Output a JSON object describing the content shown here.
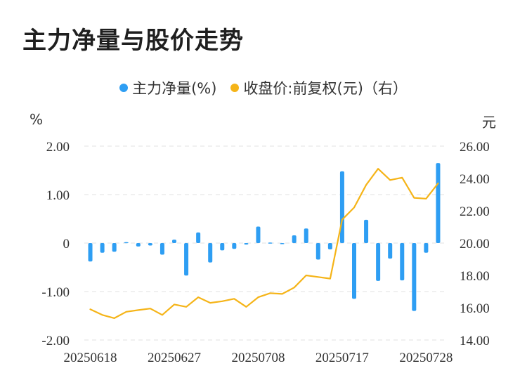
{
  "title": "主力净量与股价走势",
  "legend": {
    "net": "主力净量(%)",
    "price": "收盘价:前复权(元)（右）"
  },
  "units": {
    "left": "%",
    "right": "元"
  },
  "colors": {
    "bar": "#2e9ef3",
    "line": "#f5b418",
    "grid": "#e0e0e0"
  },
  "chart_data": {
    "type": "bar+line",
    "title": "主力净量与股价走势",
    "x_ticks": [
      "20250618",
      "20250627",
      "20250708",
      "20250717",
      "20250728"
    ],
    "x_tick_indices": [
      0,
      7,
      14,
      21,
      28
    ],
    "left_axis": {
      "unit": "%",
      "ylim": [
        -2,
        2
      ],
      "ticks": [
        "2.00",
        "1.00",
        "0",
        "-1.00",
        "-2.00"
      ],
      "tick_values": [
        2,
        1,
        0,
        -1,
        -2
      ]
    },
    "right_axis": {
      "unit": "元",
      "ylim": [
        14,
        26
      ],
      "ticks": [
        "26.00",
        "24.00",
        "22.00",
        "20.00",
        "18.00",
        "16.00",
        "14.00"
      ],
      "tick_values": [
        26,
        24,
        22,
        20,
        18,
        16,
        14
      ]
    },
    "grid": true,
    "legend_position": "top-center",
    "series": [
      {
        "name": "主力净量(%)",
        "type": "bar",
        "axis": "left",
        "values": [
          -0.38,
          -0.2,
          -0.18,
          0.02,
          -0.07,
          -0.05,
          -0.24,
          0.07,
          -0.67,
          0.22,
          -0.4,
          -0.15,
          -0.12,
          -0.03,
          0.34,
          0.01,
          -0.02,
          0.16,
          0.3,
          -0.34,
          -0.13,
          1.48,
          -1.15,
          0.48,
          -0.78,
          -0.32,
          -0.77,
          -1.4,
          -0.2,
          1.65
        ]
      },
      {
        "name": "收盘价:前复权(元)（右）",
        "type": "line",
        "axis": "right",
        "values": [
          15.9,
          15.55,
          15.35,
          15.75,
          15.85,
          15.95,
          15.55,
          16.2,
          16.05,
          16.65,
          16.3,
          16.4,
          16.55,
          16.05,
          16.65,
          16.9,
          16.85,
          17.25,
          18.0,
          17.9,
          17.8,
          21.45,
          22.2,
          23.6,
          24.6,
          23.9,
          24.05,
          22.8,
          22.75,
          23.7
        ]
      }
    ]
  }
}
